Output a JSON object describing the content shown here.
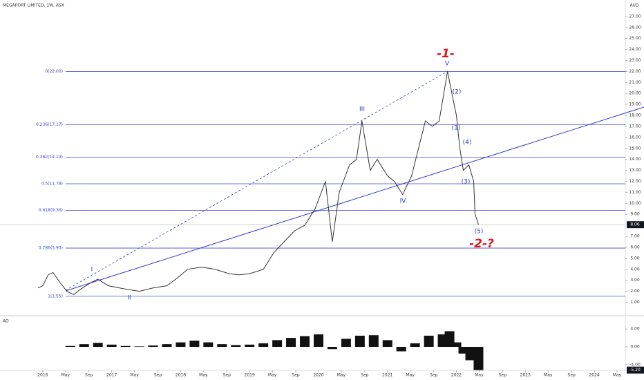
{
  "chart_data": [
    {
      "type": "line",
      "title": "MEGAPORT LIMITED, 1W, ASX",
      "currency": "AUD",
      "color": "#333333",
      "x": [
        2015.93,
        2016.0,
        2016.08,
        2016.15,
        2016.25,
        2016.35,
        2016.45,
        2016.55,
        2016.7,
        2016.8,
        2016.95,
        2017.2,
        2017.4,
        2017.6,
        2017.8,
        2017.95,
        2018.1,
        2018.3,
        2018.5,
        2018.7,
        2018.85,
        2019.0,
        2019.2,
        2019.35,
        2019.5,
        2019.65,
        2019.8,
        2019.95,
        2020.1,
        2020.2,
        2020.3,
        2020.45,
        2020.55,
        2020.63,
        2020.75,
        2020.85,
        2021.0,
        2021.1,
        2021.22,
        2021.35,
        2021.45,
        2021.55,
        2021.65,
        2021.75,
        2021.87,
        2021.95,
        2022.0,
        2022.05,
        2022.1,
        2022.18,
        2022.25,
        2022.27,
        2022.32
      ],
      "values": [
        2.3,
        2.5,
        3.5,
        3.7,
        2.8,
        2.0,
        1.7,
        2.2,
        2.8,
        3.1,
        2.5,
        2.2,
        2.0,
        2.3,
        2.5,
        3.2,
        4.0,
        4.2,
        4.0,
        3.6,
        3.5,
        3.6,
        4.0,
        5.5,
        6.5,
        7.5,
        8.0,
        9.5,
        12.0,
        6.5,
        11.0,
        13.5,
        14.0,
        17.5,
        13.0,
        14.0,
        12.5,
        12.0,
        10.8,
        12.5,
        15.0,
        17.5,
        17.0,
        17.5,
        22.0,
        19.5,
        18.0,
        15.0,
        13.0,
        13.5,
        12.0,
        9.0,
        8.06
      ],
      "last_value": 8.06,
      "xlim": [
        2015.38,
        2024.45
      ],
      "ylim": [
        -0.1,
        28.5
      ],
      "yticks": [
        {
          "value": 1,
          "label": "1.00"
        },
        {
          "value": 2,
          "label": "2.00"
        },
        {
          "value": 3,
          "label": "3.00"
        },
        {
          "value": 4,
          "label": "4.00"
        },
        {
          "value": 5,
          "label": "5.00"
        },
        {
          "value": 6,
          "label": "6.00"
        },
        {
          "value": 7,
          "label": "7.00"
        },
        {
          "value": 9,
          "label": "9.00"
        },
        {
          "value": 10,
          "label": "10.00"
        },
        {
          "value": 11,
          "label": "11.00"
        },
        {
          "value": 12,
          "label": "12.00"
        },
        {
          "value": 13,
          "label": "13.00"
        },
        {
          "value": 14,
          "label": "14.00"
        },
        {
          "value": 15,
          "label": "15.00"
        },
        {
          "value": 16,
          "label": "16.00"
        },
        {
          "value": 17,
          "label": "17.00"
        },
        {
          "value": 18,
          "label": "18.00"
        },
        {
          "value": 19,
          "label": "19.00"
        },
        {
          "value": 20,
          "label": "20.00"
        },
        {
          "value": 21,
          "label": "21.00"
        },
        {
          "value": 22,
          "label": "22.00"
        },
        {
          "value": 23,
          "label": "23.00"
        },
        {
          "value": 24,
          "label": "24.00"
        },
        {
          "value": 25,
          "label": "25.00"
        },
        {
          "value": 26,
          "label": "26.00"
        },
        {
          "value": 27,
          "label": "27.00"
        }
      ],
      "xticks": [
        2016,
        {
          "value": 2016.33,
          "label": "May"
        },
        {
          "value": 2016.67,
          "label": "Sep"
        },
        2017,
        {
          "value": 2017.33,
          "label": "May"
        },
        {
          "value": 2017.67,
          "label": "Sep"
        },
        2018,
        {
          "value": 2018.33,
          "label": "May"
        },
        {
          "value": 2018.67,
          "label": "Sep"
        },
        2019,
        {
          "value": 2019.33,
          "label": "May"
        },
        {
          "value": 2019.67,
          "label": "Sep"
        },
        2020,
        {
          "value": 2020.33,
          "label": "May"
        },
        {
          "value": 2020.67,
          "label": "Sep"
        },
        2021,
        {
          "value": 2021.33,
          "label": "May"
        },
        {
          "value": 2021.67,
          "label": "Sep"
        },
        2022,
        {
          "value": 2022.33,
          "label": "May"
        },
        {
          "value": 2022.67,
          "label": "Sep"
        },
        2023,
        {
          "value": 2023.33,
          "label": "May"
        },
        {
          "value": 2023.67,
          "label": "Sep"
        },
        2024,
        {
          "value": 2024.33,
          "label": "May"
        }
      ],
      "fib_levels": [
        {
          "value": 22,
          "label": "0(22.00)"
        },
        {
          "value": 17.17,
          "label": "0.236(17.17)"
        },
        {
          "value": 14.19,
          "label": "0.382(14.19)"
        },
        {
          "value": 11.78,
          "label": "0.5(11.78)"
        },
        {
          "value": 9.36,
          "label": "0.618(9.36)"
        },
        {
          "value": 5.93,
          "label": "0.786(5.93)"
        },
        {
          "value": 1.55,
          "label": "1(1.55)"
        }
      ],
      "annotations": [
        "-1-",
        "V",
        "III",
        "IV",
        "I",
        "II",
        "(1)",
        "(2)",
        "(3)",
        "(4)",
        "(5)",
        "-2-?"
      ]
    },
    {
      "type": "bar",
      "title": "AO",
      "color": "#111111",
      "x": [
        2016.4,
        2016.6,
        2016.8,
        2017.0,
        2017.2,
        2017.4,
        2017.6,
        2017.8,
        2018.0,
        2018.2,
        2018.4,
        2018.6,
        2018.8,
        2019.0,
        2019.2,
        2019.4,
        2019.6,
        2019.8,
        2020.0,
        2020.2,
        2020.4,
        2020.6,
        2020.8,
        2021.0,
        2021.2,
        2021.4,
        2021.6,
        2021.8,
        2021.9,
        2022.0,
        2022.1,
        2022.2,
        2022.32
      ],
      "values": [
        0.2,
        0.6,
        0.9,
        0.5,
        0.2,
        0.1,
        0.3,
        0.6,
        1.0,
        1.4,
        1.0,
        0.6,
        0.4,
        0.5,
        0.8,
        1.5,
        2.0,
        2.4,
        2.8,
        -0.5,
        1.8,
        2.5,
        2.6,
        1.5,
        -1.0,
        0.8,
        2.5,
        2.8,
        3.5,
        1.0,
        -1.5,
        -3.0,
        -5.2
      ],
      "last_value": -5.2,
      "last_value_label": "-5.20",
      "ylim": [
        -5.1,
        6.5
      ],
      "yticks": [
        {
          "value": 4,
          "label": "4.00"
        },
        {
          "value": 0,
          "label": "0.00"
        },
        {
          "value": -4,
          "label": "-4.00"
        }
      ]
    }
  ]
}
